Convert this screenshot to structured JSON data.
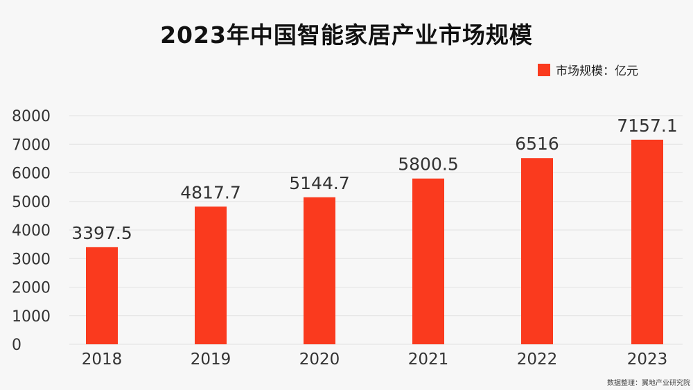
{
  "chart_data": {
    "type": "bar",
    "title": "2023年中国智能家居产业市场规模",
    "categories": [
      "2018",
      "2019",
      "2020",
      "2021",
      "2022",
      "2023"
    ],
    "series": [
      {
        "name": "市场规模：亿元",
        "values": [
          3397.5,
          4817.7,
          5144.7,
          5800.5,
          6516,
          7157.1
        ]
      }
    ],
    "data_labels": [
      "3397.5",
      "4817.7",
      "5144.7",
      "5800.5",
      "6516",
      "7157.1"
    ],
    "yticks": [
      "0",
      "1000",
      "2000",
      "3000",
      "4000",
      "5000",
      "6000",
      "7000",
      "8000"
    ],
    "ylim": [
      0,
      8000
    ],
    "grid": true,
    "legend_position": "top-right",
    "bar_color": "#fa3a1e",
    "xlabel": "",
    "ylabel": ""
  },
  "source_note": "数据整理：翼地产业研究院"
}
